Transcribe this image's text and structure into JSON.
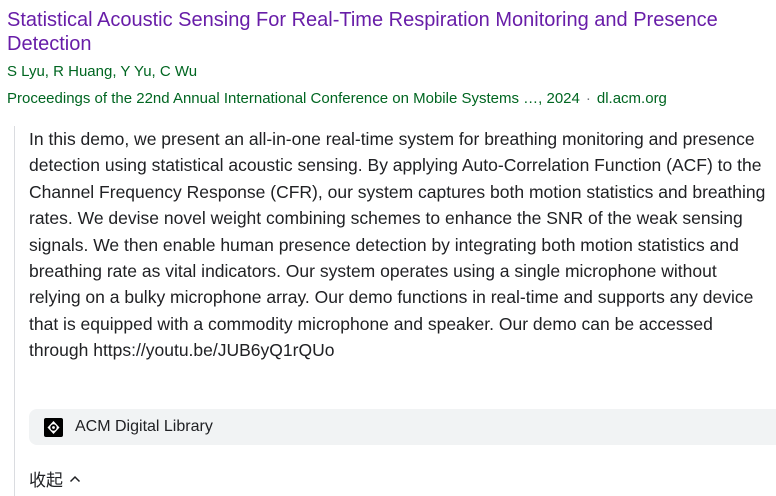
{
  "result": {
    "title": "Statistical Acoustic Sensing For Real-Time Respiration Monitoring and Presence Detection",
    "authors": "S Lyu, R Huang, Y Yu, C Wu",
    "venue": "Proceedings of the 22nd Annual International Conference on Mobile Systems …, 2024",
    "separator": "·",
    "domain": "dl.acm.org",
    "abstract": "In this demo, we present an all-in-one real-time system for breathing monitoring and presence detection using statistical acoustic sensing. By applying Auto-Correlation Function (ACF) to the Channel Frequency Response (CFR), our system captures both motion statistics and breathing rates. We devise novel weight combining schemes to enhance the SNR of the weak sensing signals. We then enable human presence detection by integrating both motion statistics and breathing rate as vital indicators. Our system operates using a single microphone without relying on a bulky microphone array. Our demo functions in real-time and supports any device that is equipped with a commodity microphone and speaker. Our demo can be accessed through https://youtu.be/JUB6yQ1rQUo",
    "source": {
      "icon": "acm-logo-icon",
      "label": "ACM Digital Library"
    },
    "collapse_label": "收起"
  },
  "colors": {
    "title": "#681da8",
    "meta": "#006621",
    "text": "#202124",
    "chip_bg": "#f1f3f4"
  }
}
